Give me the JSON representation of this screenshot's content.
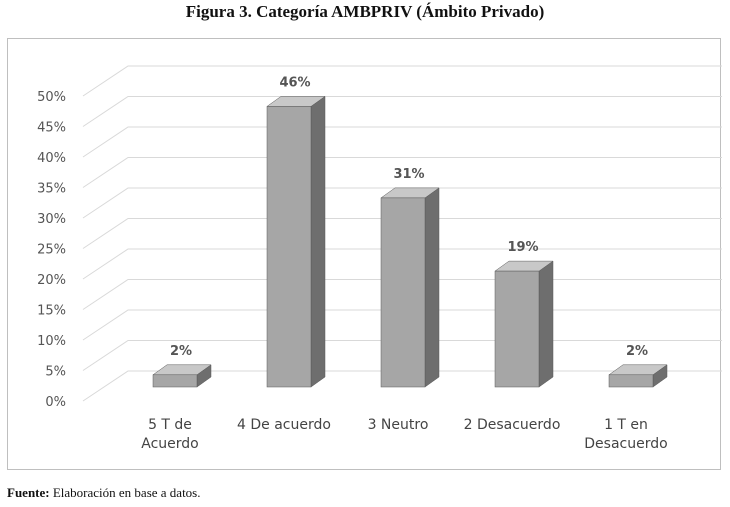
{
  "figure": {
    "title": "Figura 3. Categoría AMBPRIV (Ámbito Privado)",
    "source_label": "Fuente:",
    "source_text": " Elaboración en base a datos."
  },
  "chart_data": {
    "type": "bar",
    "categories": [
      [
        "5 T de",
        "Acuerdo"
      ],
      [
        "4 De acuerdo"
      ],
      [
        "3 Neutro"
      ],
      [
        "2 Desacuerdo"
      ],
      [
        "1 T en",
        "Desacuerdo"
      ]
    ],
    "values": [
      2,
      46,
      31,
      19,
      2
    ],
    "value_labels": [
      "2%",
      "46%",
      "31%",
      "19%",
      "2%"
    ],
    "ylim": [
      0,
      50
    ],
    "yticks": [
      0,
      5,
      10,
      15,
      20,
      25,
      30,
      35,
      40,
      45,
      50
    ],
    "ytick_labels": [
      "0%",
      "5%",
      "10%",
      "15%",
      "20%",
      "25%",
      "30%",
      "35%",
      "40%",
      "45%",
      "50%"
    ],
    "grid": true,
    "style": "3d-column",
    "colors": {
      "front": "#a6a6a6",
      "side": "#6e6e6e",
      "top": "#c8c8c8",
      "grid": "#d9d9d9"
    }
  }
}
